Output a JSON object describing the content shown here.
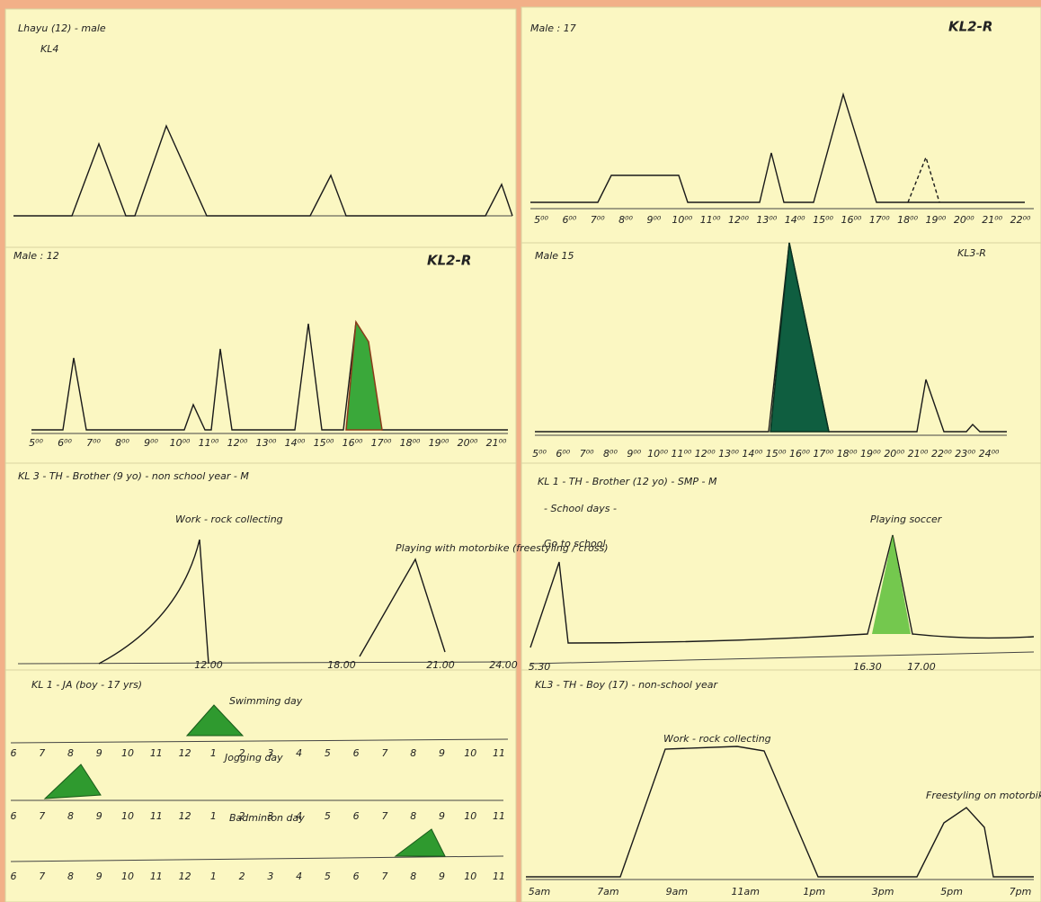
{
  "panel_1": {
    "title": "Lhayu (12) - male",
    "code": "KL4"
  },
  "panel_2": {
    "title": "Male : 17",
    "code": "KL2-R",
    "ticks": [
      "5⁰⁰",
      "6⁰⁰",
      "7⁰⁰",
      "8⁰⁰",
      "9⁰⁰",
      "10⁰⁰",
      "11⁰⁰",
      "12⁰⁰",
      "13⁰⁰",
      "14⁰⁰",
      "15⁰⁰",
      "16⁰⁰",
      "17⁰⁰",
      "18⁰⁰",
      "19⁰⁰",
      "20⁰⁰",
      "21⁰⁰",
      "22⁰⁰"
    ]
  },
  "panel_3": {
    "title": "Male : 12",
    "code": "KL2-R",
    "ticks": [
      "5⁰⁰",
      "6⁰⁰",
      "7⁰⁰",
      "8⁰⁰",
      "9⁰⁰",
      "10⁰⁰",
      "11⁰⁰",
      "12⁰⁰",
      "13⁰⁰",
      "14⁰⁰",
      "15⁰⁰",
      "16⁰⁰",
      "17⁰⁰",
      "18⁰⁰",
      "19⁰⁰",
      "20⁰⁰",
      "21⁰⁰"
    ]
  },
  "panel_4": {
    "title": "Male 15",
    "code": "KL3-R",
    "ticks": [
      "5⁰⁰",
      "6⁰⁰",
      "7⁰⁰",
      "8⁰⁰",
      "9⁰⁰",
      "10⁰⁰",
      "11⁰⁰",
      "12⁰⁰",
      "13⁰⁰",
      "14⁰⁰",
      "15⁰⁰",
      "16⁰⁰",
      "17⁰⁰",
      "18⁰⁰",
      "19⁰⁰",
      "20⁰⁰",
      "21⁰⁰",
      "22⁰⁰",
      "23⁰⁰",
      "24⁰⁰"
    ]
  },
  "panel_5": {
    "title": "KL 3 - TH - Brother (9 yo) - non school year - M",
    "annotations": [
      "Work - rock collecting",
      "Playing with motorbike (freestyling / cross)"
    ],
    "ticks": [
      "12.00",
      "18.00",
      "21.00",
      "24.00"
    ]
  },
  "panel_6": {
    "title": "KL 1 - TH - Brother (12 yo) - SMP - M",
    "subtitle": "- School days -",
    "annotations": [
      "Go to school",
      "Playing soccer"
    ],
    "ticks": [
      "5.30",
      "16.30",
      "17.00"
    ]
  },
  "panel_7": {
    "title": "KL 1 - JA (boy - 17 yrs)",
    "annotations": [
      "Swimming day",
      "Jogging day",
      "Badminton day"
    ],
    "ticks": [
      "6",
      "7",
      "8",
      "9",
      "10",
      "11",
      "12",
      "1",
      "2",
      "3",
      "4",
      "5",
      "6",
      "7",
      "8",
      "9",
      "10",
      "11"
    ]
  },
  "panel_8": {
    "title": "KL3 - TH - Boy (17) - non-school year",
    "annotations": [
      "Work - rock collecting",
      "Freestyling on motorbike"
    ],
    "ticks": [
      "5am",
      "7am",
      "9am",
      "11am",
      "1pm",
      "3pm",
      "5pm",
      "7pm"
    ]
  }
}
